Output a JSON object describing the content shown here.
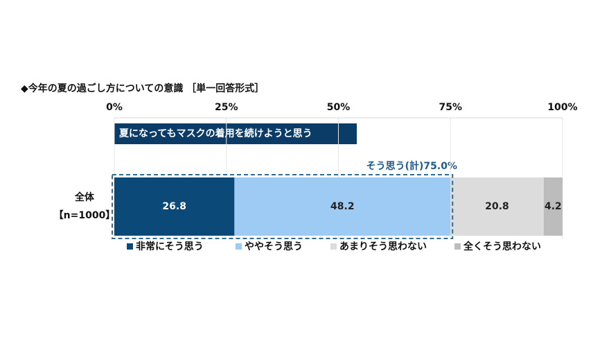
{
  "chart_data": {
    "type": "stacked_bar_horizontal",
    "title": "◆今年の夏の過ごし方についての意識 ［単一回答形式］",
    "subtitle": "夏になってもマスクの着用を続けようと思う",
    "annotation": "そう思う(計)75.0%",
    "categories": [
      "全体"
    ],
    "sample_label": "【n=1000】",
    "series": [
      {
        "name": "非常にそう思う",
        "color": "#0b4a78",
        "values": [
          26.8
        ]
      },
      {
        "name": "ややそう思う",
        "color": "#9ecbf4",
        "values": [
          48.2
        ]
      },
      {
        "name": "あまりそう思わない",
        "color": "#dcdcdc",
        "values": [
          20.8
        ]
      },
      {
        "name": "全くそう思わない",
        "color": "#bcbcbc",
        "values": [
          4.2
        ]
      }
    ],
    "xlim": [
      0,
      100
    ],
    "xticks": [
      {
        "value": 0,
        "label": "0%"
      },
      {
        "value": 25,
        "label": "25%"
      },
      {
        "value": 50,
        "label": "50%"
      },
      {
        "value": 75,
        "label": "75%"
      },
      {
        "value": 100,
        "label": "100%"
      }
    ],
    "grid": true
  }
}
